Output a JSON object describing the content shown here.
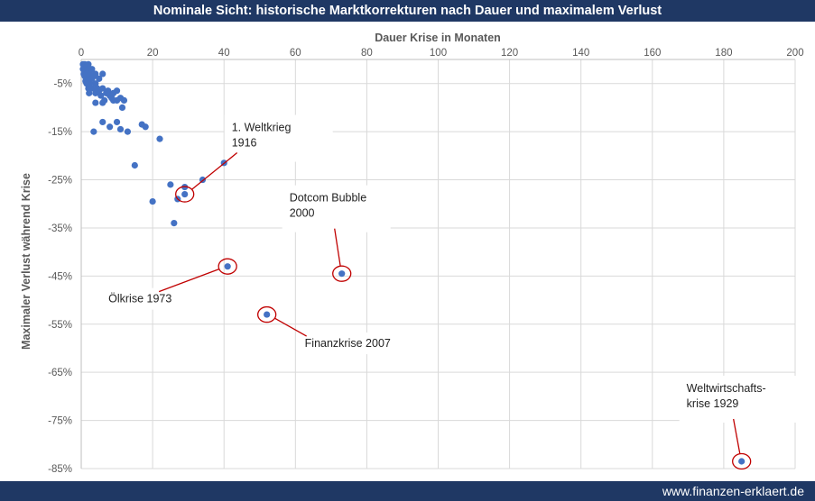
{
  "header": {
    "title": "Nominale Sicht: historische Marktkorrekturen nach Dauer und maximalem Verlust"
  },
  "footer": {
    "site": "www.finanzen-erklaert.de"
  },
  "colors": {
    "bar": "#1f3864",
    "point": "#4472c4",
    "annotation": "#c00000",
    "grid": "#d9d9d9"
  },
  "chart_data": {
    "type": "scatter",
    "xlabel": "Dauer Krise in Monaten",
    "ylabel": "Maximaler Verlust während Krise",
    "xlim": [
      0,
      200
    ],
    "ylim": [
      -0.85,
      0
    ],
    "x_ticks": [
      0,
      20,
      40,
      60,
      80,
      100,
      120,
      140,
      160,
      180,
      200
    ],
    "y_ticks": [
      -0.05,
      -0.15,
      -0.25,
      -0.35,
      -0.45,
      -0.55,
      -0.65,
      -0.75,
      -0.85
    ],
    "y_tick_labels": [
      "-5%",
      "-15%",
      "-25%",
      "-35%",
      "-45%",
      "-55%",
      "-65%",
      "-75%",
      "-85%"
    ],
    "grid": true,
    "points": [
      [
        0.5,
        -0.01
      ],
      [
        0.5,
        -0.02
      ],
      [
        0.7,
        -0.03
      ],
      [
        1,
        -0.01
      ],
      [
        1,
        -0.02
      ],
      [
        1,
        -0.035
      ],
      [
        1.2,
        -0.045
      ],
      [
        1.5,
        -0.015
      ],
      [
        1.5,
        -0.03
      ],
      [
        1.5,
        -0.05
      ],
      [
        2,
        -0.01
      ],
      [
        2,
        -0.02
      ],
      [
        2,
        -0.04
      ],
      [
        2,
        -0.06
      ],
      [
        2.2,
        -0.07
      ],
      [
        2.5,
        -0.03
      ],
      [
        2.5,
        -0.05
      ],
      [
        3,
        -0.02
      ],
      [
        3,
        -0.04
      ],
      [
        3,
        -0.06
      ],
      [
        3.5,
        -0.035
      ],
      [
        4,
        -0.03
      ],
      [
        4,
        -0.05
      ],
      [
        4,
        -0.07
      ],
      [
        4,
        -0.09
      ],
      [
        4.5,
        -0.06
      ],
      [
        5,
        -0.04
      ],
      [
        5,
        -0.065
      ],
      [
        5.5,
        -0.075
      ],
      [
        6,
        -0.03
      ],
      [
        6,
        -0.06
      ],
      [
        6,
        -0.09
      ],
      [
        6.5,
        -0.085
      ],
      [
        7,
        -0.07
      ],
      [
        7.5,
        -0.065
      ],
      [
        8,
        -0.075
      ],
      [
        8.5,
        -0.08
      ],
      [
        9,
        -0.07
      ],
      [
        9,
        -0.085
      ],
      [
        10,
        -0.065
      ],
      [
        10,
        -0.085
      ],
      [
        11,
        -0.08
      ],
      [
        11.5,
        -0.1
      ],
      [
        12,
        -0.085
      ],
      [
        3.5,
        -0.15
      ],
      [
        6,
        -0.13
      ],
      [
        8,
        -0.14
      ],
      [
        10,
        -0.13
      ],
      [
        11,
        -0.145
      ],
      [
        13,
        -0.15
      ],
      [
        17,
        -0.135
      ],
      [
        18,
        -0.14
      ],
      [
        22,
        -0.165
      ],
      [
        15,
        -0.22
      ],
      [
        25,
        -0.26
      ],
      [
        27,
        -0.29
      ],
      [
        29,
        -0.265
      ],
      [
        34,
        -0.25
      ],
      [
        40,
        -0.215
      ],
      [
        20,
        -0.295
      ],
      [
        26,
        -0.34
      ],
      [
        29,
        -0.28
      ],
      [
        41,
        -0.43
      ],
      [
        52,
        -0.53
      ],
      [
        73,
        -0.445
      ],
      [
        185,
        -0.835
      ]
    ],
    "annotations": [
      {
        "text": [
          "1. Weltkrieg",
          "1916"
        ],
        "x": 29,
        "y": -0.28
      },
      {
        "text": [
          "Dotcom Bubble",
          "2000"
        ],
        "x": 73,
        "y": -0.445
      },
      {
        "text": [
          "Ölkrise 1973"
        ],
        "x": 41,
        "y": -0.43
      },
      {
        "text": [
          "Finanzkrise 2007"
        ],
        "x": 52,
        "y": -0.53
      },
      {
        "text": [
          "Weltwirtschafts-",
          "krise 1929"
        ],
        "x": 185,
        "y": -0.835
      }
    ]
  }
}
